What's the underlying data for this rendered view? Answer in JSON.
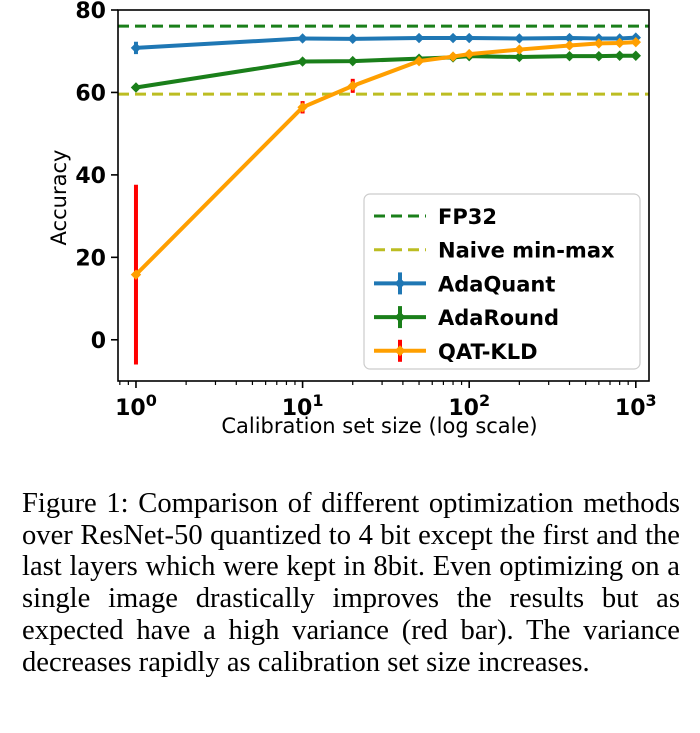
{
  "chart_data": {
    "type": "line",
    "xlabel": "Calibration set size (log scale)",
    "ylabel": "Accuracy",
    "xscale": "log",
    "xlim": [
      0.78,
      1200
    ],
    "ylim": [
      -10,
      80
    ],
    "x_ticks": [
      {
        "value": 1,
        "base": "10",
        "exp": "0"
      },
      {
        "value": 10,
        "base": "10",
        "exp": "1"
      },
      {
        "value": 100,
        "base": "10",
        "exp": "2"
      },
      {
        "value": 1000,
        "base": "10",
        "exp": "3"
      }
    ],
    "y_ticks": [
      0,
      20,
      40,
      60,
      80
    ],
    "reference_lines": [
      {
        "name": "FP32",
        "y": 76.1,
        "color": "#1a7f1a",
        "style": "dashed"
      },
      {
        "name": "Naive min-max",
        "y": 59.6,
        "color": "#bcbd22",
        "style": "dashed"
      }
    ],
    "series": [
      {
        "name": "AdaQuant",
        "color": "#1f77b4",
        "x": [
          1,
          10,
          20,
          50,
          80,
          100,
          200,
          400,
          600,
          800,
          1000
        ],
        "y": [
          70.8,
          73.1,
          73.0,
          73.2,
          73.2,
          73.2,
          73.1,
          73.2,
          73.1,
          73.1,
          73.3
        ],
        "err": [
          1.5,
          0.4,
          0.3,
          0.3,
          0.3,
          0.3,
          0.3,
          0.3,
          0.3,
          0.3,
          0.3
        ]
      },
      {
        "name": "AdaRound",
        "color": "#1a7f1a",
        "x": [
          1,
          10,
          20,
          50,
          80,
          100,
          200,
          400,
          600,
          800,
          1000
        ],
        "y": [
          61.2,
          67.5,
          67.6,
          68.2,
          68.5,
          68.8,
          68.6,
          68.8,
          68.8,
          68.9,
          68.9
        ],
        "err": [
          0.5,
          0.3,
          0.3,
          0.3,
          0.3,
          0.3,
          0.3,
          0.3,
          0.3,
          0.3,
          0.3
        ]
      },
      {
        "name": "QAT-KLD",
        "color": "#ff9f00",
        "x": [
          1,
          10,
          20,
          50,
          80,
          100,
          200,
          400,
          600,
          800,
          1000
        ],
        "y": [
          15.8,
          56.4,
          61.6,
          67.6,
          68.7,
          69.3,
          70.4,
          71.4,
          71.9,
          72.0,
          72.2
        ],
        "err": [
          21.8,
          1.5,
          1.7,
          0.6,
          0.5,
          0.5,
          0.5,
          0.5,
          0.5,
          0.5,
          0.5
        ],
        "err_color": "#ff0000"
      }
    ],
    "legend": {
      "position": "lower right",
      "entries": [
        "FP32",
        "Naive min-max",
        "AdaQuant",
        "AdaRound",
        "QAT-KLD"
      ]
    },
    "grid": false
  },
  "caption": "Figure 1: Comparison of different optimization methods over ResNet-50 quantized to 4 bit except the first and the last layers which were kept in 8bit. Even optimizing on a single image drastically improves the results but as expected have a high variance (red bar). The variance decreases rapidly as calibration set size increases."
}
